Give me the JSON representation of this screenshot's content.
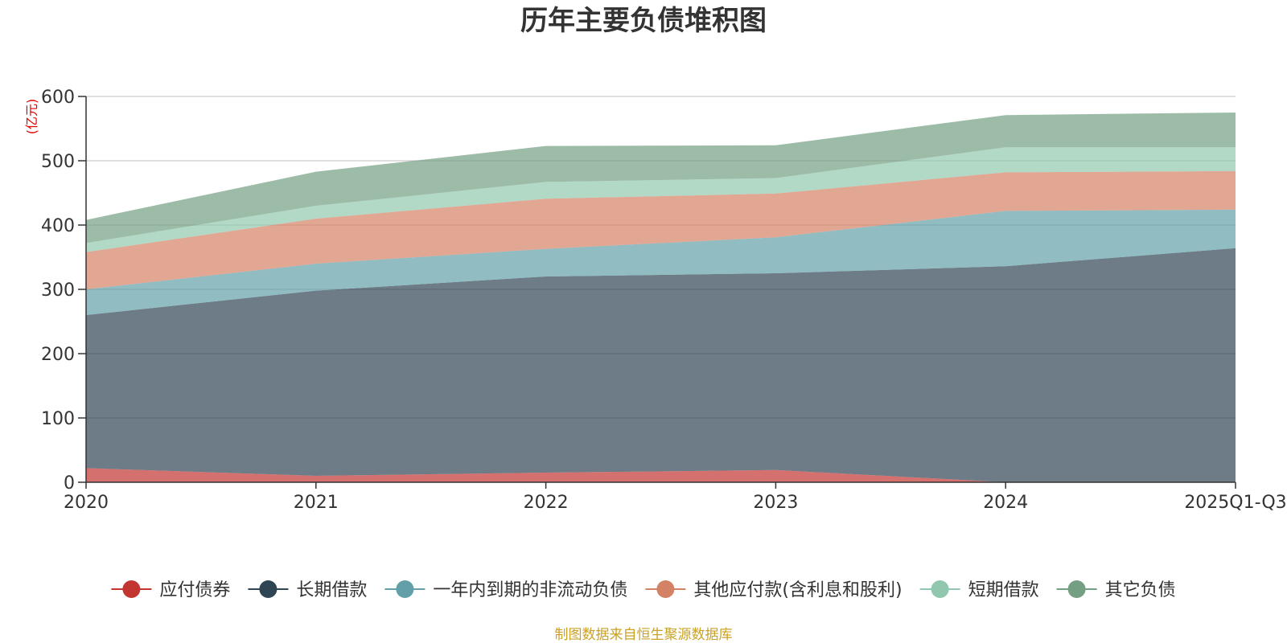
{
  "chart_data": {
    "type": "area",
    "stacked": true,
    "title": "历年主要负债堆积图",
    "ylabel": "(亿元)",
    "ylim": [
      0,
      600
    ],
    "yticks": [
      0,
      100,
      200,
      300,
      400,
      500,
      600
    ],
    "categories": [
      "2020",
      "2021",
      "2022",
      "2023",
      "2024",
      "2025Q1-Q3"
    ],
    "series": [
      {
        "name": "应付债券",
        "color": "#c23531",
        "values": [
          22,
          10,
          15,
          19,
          0,
          0
        ]
      },
      {
        "name": "长期借款",
        "color": "#2f4554",
        "values": [
          238,
          288,
          305,
          306,
          336,
          364
        ]
      },
      {
        "name": "一年内到期的非流动负债",
        "color": "#61a0a8",
        "values": [
          40,
          42,
          43,
          56,
          86,
          60
        ]
      },
      {
        "name": "其他应付款(含利息和股利)",
        "color": "#d48265",
        "values": [
          58,
          70,
          78,
          68,
          60,
          60
        ]
      },
      {
        "name": "短期借款",
        "color": "#91c7ae",
        "values": [
          14,
          20,
          26,
          24,
          39,
          37
        ]
      },
      {
        "name": "其它负债",
        "color": "#749f83",
        "values": [
          36,
          53,
          56,
          51,
          50,
          54
        ]
      }
    ],
    "grid": true,
    "legend_position": "bottom",
    "source": "制图数据来自恒生聚源数据库"
  }
}
